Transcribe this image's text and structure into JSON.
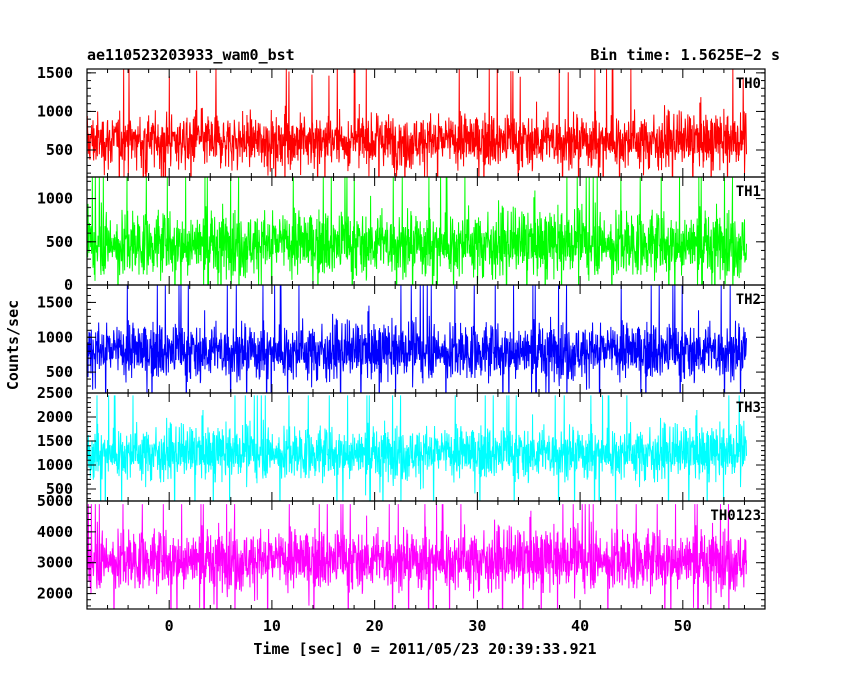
{
  "header": {
    "left_title": "ae110523203933_wam0_bst",
    "right_title": "Bin time: 1.5625E−2 s"
  },
  "axes": {
    "xlabel": "Time [sec] 0 = 2011/05/23 20:39:33.921",
    "ylabel": "Counts/sec"
  },
  "chart_data": {
    "type": "line",
    "layout": "stacked-panels",
    "shared_x": {
      "range": [
        -8,
        58
      ],
      "ticks": [
        0,
        10,
        20,
        30,
        40,
        50
      ],
      "tick_labels": [
        "0",
        "10",
        "20",
        "30",
        "40",
        "50"
      ],
      "data_range": [
        -8,
        56.2
      ],
      "bin_time": 0.015625
    },
    "grid": false,
    "series": [
      {
        "name": "TH0",
        "color": "#ff0000",
        "ylim": [
          150,
          1550
        ],
        "yticks": [
          500,
          1000,
          1500
        ],
        "ytick_labels": [
          "500",
          "1000",
          "1500"
        ],
        "mean": 620,
        "typical_low": 230,
        "typical_high": 1050,
        "peak_max": 1550
      },
      {
        "name": "TH1",
        "color": "#00ff00",
        "ylim": [
          0,
          1250
        ],
        "yticks": [
          0,
          500,
          1000
        ],
        "ytick_labels": [
          "0",
          "500",
          "1000"
        ],
        "mean": 480,
        "typical_low": 60,
        "typical_high": 950,
        "peak_max": 1250
      },
      {
        "name": "TH2",
        "color": "#0000ff",
        "ylim": [
          200,
          1750
        ],
        "yticks": [
          500,
          1000,
          1500
        ],
        "ytick_labels": [
          "500",
          "1000",
          "1500"
        ],
        "mean": 800,
        "typical_low": 350,
        "typical_high": 1300,
        "peak_max": 1750
      },
      {
        "name": "TH3",
        "color": "#00ffff",
        "ylim": [
          250,
          2500
        ],
        "yticks": [
          500,
          1000,
          1500,
          2000,
          2500
        ],
        "ytick_labels": [
          "500",
          "1000",
          "1500",
          "2000",
          "2500"
        ],
        "mean": 1250,
        "typical_low": 650,
        "typical_high": 1950,
        "peak_max": 2450
      },
      {
        "name": "TH0123",
        "color": "#ff00ff",
        "ylim": [
          1500,
          5000
        ],
        "yticks": [
          2000,
          3000,
          4000,
          5000
        ],
        "ytick_labels": [
          "2000",
          "3000",
          "4000",
          "5000"
        ],
        "mean": 3100,
        "typical_low": 2000,
        "typical_high": 4300,
        "peak_max": 4900
      }
    ]
  }
}
